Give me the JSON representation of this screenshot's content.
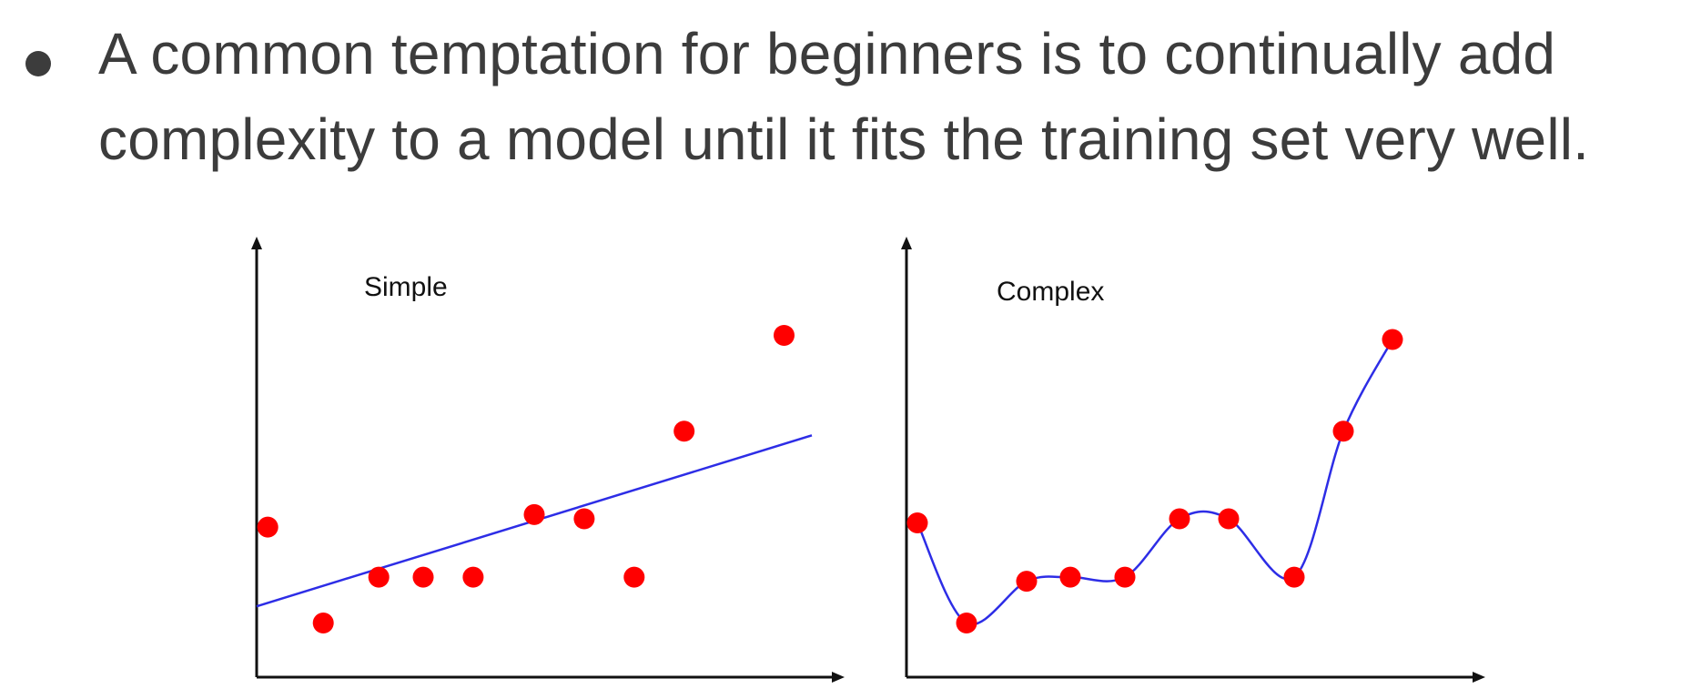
{
  "bullet": {
    "line1": "A common temptation for beginners is to continually add",
    "line2": "complexity to a model until it fits the training set very well."
  },
  "colors": {
    "text": "#3c3c3c",
    "axis": "#111111",
    "point": "#ff0000",
    "fit": "#2d2de6"
  },
  "chart_data": [
    {
      "type": "scatter",
      "title": "Simple",
      "xlabel": "",
      "ylabel": "",
      "xlim": [
        0,
        100
      ],
      "ylim": [
        0,
        100
      ],
      "grid": false,
      "points": [
        {
          "x": 2,
          "y": 36
        },
        {
          "x": 12,
          "y": 13
        },
        {
          "x": 22,
          "y": 24
        },
        {
          "x": 30,
          "y": 24
        },
        {
          "x": 39,
          "y": 24
        },
        {
          "x": 50,
          "y": 39
        },
        {
          "x": 59,
          "y": 38
        },
        {
          "x": 68,
          "y": 24
        },
        {
          "x": 77,
          "y": 59
        },
        {
          "x": 95,
          "y": 82
        }
      ],
      "fit_line": {
        "kind": "linear",
        "from": {
          "x": 0,
          "y": 17
        },
        "to": {
          "x": 100,
          "y": 58
        }
      }
    },
    {
      "type": "scatter",
      "title": "Complex",
      "xlabel": "",
      "ylabel": "",
      "xlim": [
        0,
        100
      ],
      "ylim": [
        0,
        100
      ],
      "grid": false,
      "points": [
        {
          "x": 2,
          "y": 37
        },
        {
          "x": 11,
          "y": 13
        },
        {
          "x": 22,
          "y": 23
        },
        {
          "x": 30,
          "y": 24
        },
        {
          "x": 40,
          "y": 24
        },
        {
          "x": 50,
          "y": 38
        },
        {
          "x": 59,
          "y": 38
        },
        {
          "x": 71,
          "y": 24
        },
        {
          "x": 80,
          "y": 59
        },
        {
          "x": 89,
          "y": 81
        }
      ],
      "fit_curve": {
        "kind": "interpolating",
        "points": [
          {
            "x": 2,
            "y": 37
          },
          {
            "x": 11,
            "y": 13
          },
          {
            "x": 22,
            "y": 23
          },
          {
            "x": 30,
            "y": 24
          },
          {
            "x": 40,
            "y": 24
          },
          {
            "x": 50,
            "y": 38
          },
          {
            "x": 59,
            "y": 38
          },
          {
            "x": 71,
            "y": 24
          },
          {
            "x": 80,
            "y": 59
          },
          {
            "x": 89,
            "y": 81
          }
        ]
      }
    }
  ]
}
